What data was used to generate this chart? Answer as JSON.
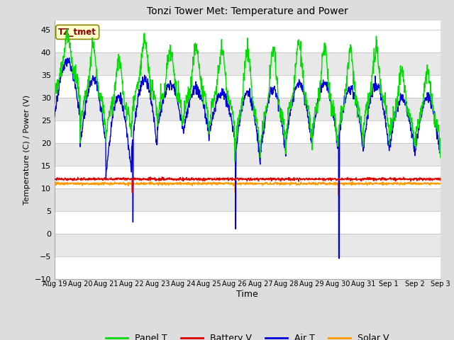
{
  "title": "Tonzi Tower Met: Temperature and Power",
  "xlabel": "Time",
  "ylabel": "Temperature (C) / Power (V)",
  "ylim": [
    -10,
    47
  ],
  "yticks": [
    -10,
    -5,
    0,
    5,
    10,
    15,
    20,
    25,
    30,
    35,
    40,
    45
  ],
  "x_labels": [
    "Aug 19",
    "Aug 20",
    "Aug 21",
    "Aug 22",
    "Aug 23",
    "Aug 24",
    "Aug 25",
    "Aug 26",
    "Aug 27",
    "Aug 28",
    "Aug 29",
    "Aug 30",
    "Aug 31",
    "Sep 1",
    "Sep 2",
    "Sep 3"
  ],
  "n_days": 15,
  "panel_color": "#00dd00",
  "battery_color": "#dd0000",
  "air_color": "#0000dd",
  "solar_color": "#ff9900",
  "background_color": "#dddddd",
  "plot_bg_white": "#ffffff",
  "plot_bg_gray": "#e8e8e8",
  "annotation_text": "TZ_tmet",
  "annotation_box_color": "#ffffcc",
  "annotation_text_color": "#880000",
  "annotation_edge_color": "#888800"
}
